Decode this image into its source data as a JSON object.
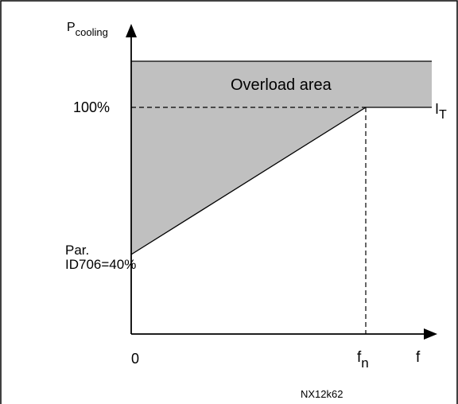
{
  "diagram": {
    "y_axis_label": "P",
    "y_axis_label_sub": "cooling",
    "x_axis_label": "f",
    "origin_label": "0",
    "fn_label": "f",
    "fn_label_sub": "n",
    "level_100_label": "100%",
    "min_label_line1": "Par.",
    "min_label_line2": "ID706=40%",
    "curve_label": "I",
    "curve_label_sub": "T",
    "region_label": "Overload area",
    "figure_code": "NX12k62"
  },
  "colors": {
    "overload_fill": "#c0c0c0",
    "line": "#000000",
    "frame": "#000000"
  }
}
